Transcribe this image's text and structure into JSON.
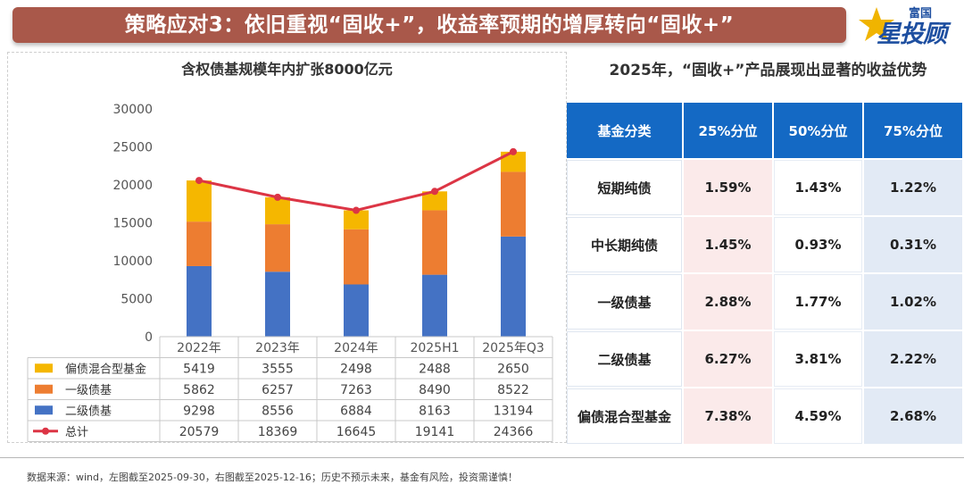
{
  "header": {
    "title": "策略应对3：依旧重视“固收+”，收益率预期的增厚转向“固收+”",
    "logo_small": "富国",
    "logo_main": "星投顾"
  },
  "colors": {
    "title_bg": "#a9584a",
    "table_header": "#1469c4",
    "series_mixed": "#f5b700",
    "series_primary": "#ed7d31",
    "series_secondary": "#4472c4",
    "series_total": "#dc3545"
  },
  "chart_data": {
    "type": "bar",
    "stacked": true,
    "title": "含权债基规模年内扩张8000亿元",
    "categories": [
      "2022年",
      "2023年",
      "2024年",
      "2025H1",
      "2025年Q3"
    ],
    "ylim": [
      0,
      30000
    ],
    "yticks": [
      "0",
      "5000",
      "10000",
      "15000",
      "20000",
      "25000",
      "30000"
    ],
    "series": [
      {
        "name": "偏债混合型基金",
        "kind": "bar",
        "color": "#f5b700",
        "values": [
          5419,
          3555,
          2498,
          2488,
          2650
        ],
        "labels": [
          "5419",
          "3555",
          "2498",
          "2488",
          "2650"
        ]
      },
      {
        "name": "一级债基",
        "kind": "bar",
        "color": "#ed7d31",
        "values": [
          5862,
          6257,
          7263,
          8490,
          8522
        ],
        "labels": [
          "5862",
          "6257",
          "7263",
          "8490",
          "8522"
        ]
      },
      {
        "name": "二级债基",
        "kind": "bar",
        "color": "#4472c4",
        "values": [
          9298,
          8556,
          6884,
          8163,
          13194
        ],
        "labels": [
          "9298",
          "8556",
          "6884",
          "8163",
          "13194"
        ]
      },
      {
        "name": "总计",
        "kind": "line",
        "color": "#dc3545",
        "values": [
          20579,
          18369,
          16645,
          19141,
          24366
        ],
        "labels": [
          "20579",
          "18369",
          "16645",
          "19141",
          "24366"
        ]
      }
    ]
  },
  "yield_table": {
    "title": "2025年，“固收+”产品展现出显著的收益优势",
    "headers": [
      "基金分类",
      "25%分位",
      "50%分位",
      "75%分位"
    ],
    "rows": [
      [
        "短期纯债",
        "1.59%",
        "1.43%",
        "1.22%"
      ],
      [
        "中长期纯债",
        "1.45%",
        "0.93%",
        "0.31%"
      ],
      [
        "一级债基",
        "2.88%",
        "1.77%",
        "1.02%"
      ],
      [
        "二级债基",
        "6.27%",
        "3.81%",
        "2.22%"
      ],
      [
        "偏债混合型基金",
        "7.38%",
        "4.59%",
        "2.68%"
      ]
    ]
  },
  "footer": {
    "source": "数据来源：wind，左图截至2025-09-30，右图截至2025-12-16；历史不预示未来，基金有风险，投资需谨慎！"
  }
}
